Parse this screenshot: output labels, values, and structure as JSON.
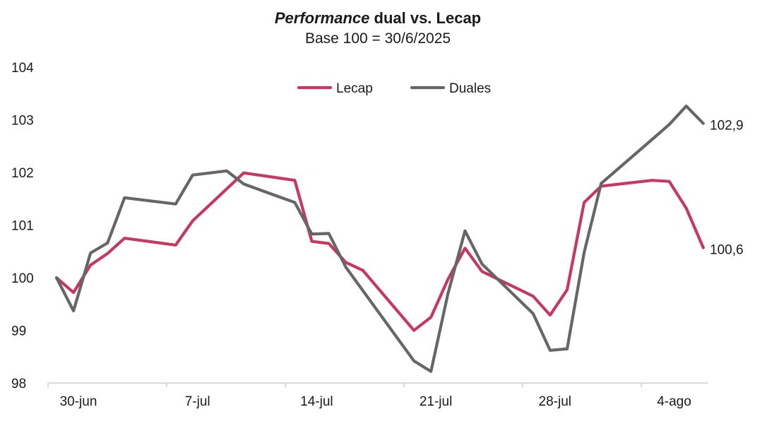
{
  "chart_data": {
    "type": "line",
    "title": {
      "emphasis": "Performance",
      "rest": " dual vs. Lecap"
    },
    "subtitle": "Base 100 = 30/6/2025",
    "xlabel": "",
    "ylabel": "",
    "ylim": [
      98,
      104
    ],
    "yticks": [
      "98",
      "99",
      "100",
      "101",
      "102",
      "103",
      "104"
    ],
    "x_tick_labels": [
      {
        "day": 0,
        "label": "30-jun"
      },
      {
        "day": 7,
        "label": "7-jul"
      },
      {
        "day": 14,
        "label": "14-jul"
      },
      {
        "day": 21,
        "label": "21-jul"
      },
      {
        "day": 28,
        "label": "28-jul"
      },
      {
        "day": 35,
        "label": "4-ago"
      }
    ],
    "legend_position": "top-center",
    "grid": false,
    "series": [
      {
        "name": "Lecap",
        "color": "#c7375f",
        "end_label": "100,6",
        "points": [
          [
            0,
            100.0
          ],
          [
            1,
            99.72
          ],
          [
            2,
            100.24
          ],
          [
            3,
            100.46
          ],
          [
            4,
            100.75
          ],
          [
            7,
            100.62
          ],
          [
            8,
            101.08
          ],
          [
            11,
            101.99
          ],
          [
            14,
            101.85
          ],
          [
            15,
            100.69
          ],
          [
            16,
            100.65
          ],
          [
            17,
            100.29
          ],
          [
            18,
            100.14
          ],
          [
            21,
            99.0
          ],
          [
            22,
            99.25
          ],
          [
            23,
            99.97
          ],
          [
            24,
            100.56
          ],
          [
            25,
            100.12
          ],
          [
            28,
            99.65
          ],
          [
            29,
            99.29
          ],
          [
            30,
            99.77
          ],
          [
            31,
            101.43
          ],
          [
            32,
            101.74
          ],
          [
            35,
            101.85
          ],
          [
            36,
            101.83
          ],
          [
            37,
            101.32
          ],
          [
            38,
            100.57
          ]
        ]
      },
      {
        "name": "Duales",
        "color": "#666666",
        "end_label": "102,9",
        "points": [
          [
            0,
            100.0
          ],
          [
            1,
            99.37
          ],
          [
            2,
            100.47
          ],
          [
            3,
            100.66
          ],
          [
            4,
            101.52
          ],
          [
            7,
            101.4
          ],
          [
            8,
            101.95
          ],
          [
            10,
            102.03
          ],
          [
            11,
            101.78
          ],
          [
            14,
            101.43
          ],
          [
            15,
            100.83
          ],
          [
            16,
            100.84
          ],
          [
            17,
            100.2
          ],
          [
            21,
            98.42
          ],
          [
            22,
            98.22
          ],
          [
            23,
            99.7
          ],
          [
            24,
            100.89
          ],
          [
            25,
            100.26
          ],
          [
            28,
            99.32
          ],
          [
            29,
            98.62
          ],
          [
            30,
            98.65
          ],
          [
            31,
            100.48
          ],
          [
            32,
            101.79
          ],
          [
            35,
            102.63
          ],
          [
            36,
            102.91
          ],
          [
            37,
            103.26
          ],
          [
            38,
            102.93
          ]
        ]
      }
    ]
  }
}
